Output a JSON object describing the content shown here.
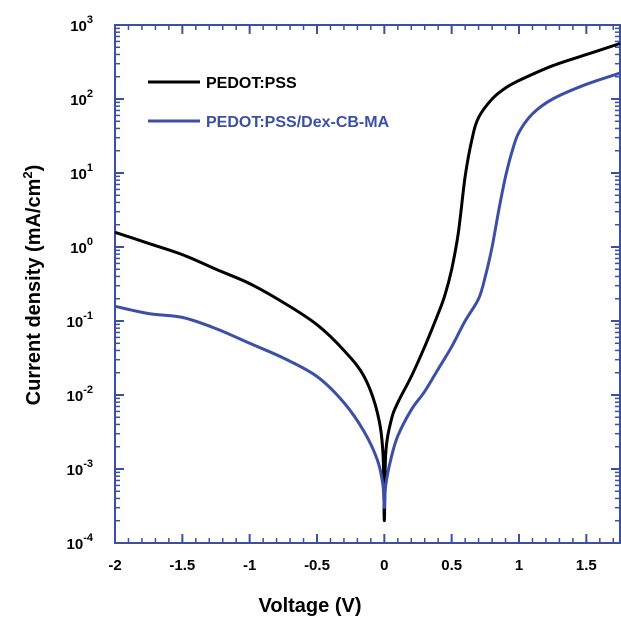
{
  "chart_data": {
    "type": "line",
    "xlabel": "Voltage (V)",
    "ylabel": "Current density (mA/cm",
    "ylabel_sup": "2",
    "ylabel_close": ")",
    "xlim": [
      -2,
      1.75
    ],
    "ylim": [
      0.0001,
      1000
    ],
    "yscale": "log",
    "x_ticks": [
      -2,
      -1.5,
      -1,
      -0.5,
      0,
      0.5,
      1,
      1.5
    ],
    "x_tick_labels": [
      "-2",
      "-1.5",
      "-1",
      "-0.5",
      "0",
      "0.5",
      "1",
      "1.5"
    ],
    "y_ticks": [
      {
        "value": 0.0001,
        "base": "10",
        "exp": "-4"
      },
      {
        "value": 0.001,
        "base": "10",
        "exp": "-3"
      },
      {
        "value": 0.01,
        "base": "10",
        "exp": "-2"
      },
      {
        "value": 0.1,
        "base": "10",
        "exp": "-1"
      },
      {
        "value": 1,
        "base": "10",
        "exp": "0"
      },
      {
        "value": 10,
        "base": "10",
        "exp": "1"
      },
      {
        "value": 100,
        "base": "10",
        "exp": "2"
      },
      {
        "value": 1000,
        "base": "10",
        "exp": "3"
      }
    ],
    "grid": false,
    "legend_position": "top-left",
    "series": [
      {
        "name": "PEDOT:PSS",
        "color": "#000000",
        "x": [
          -2,
          -1.75,
          -1.5,
          -1.25,
          -1,
          -0.75,
          -0.5,
          -0.3,
          -0.15,
          -0.05,
          -0.01,
          0,
          0.01,
          0.05,
          0.1,
          0.2,
          0.3,
          0.4,
          0.45,
          0.5,
          0.55,
          0.6,
          0.65,
          0.7,
          0.8,
          0.9,
          1,
          1.25,
          1.5,
          1.75
        ],
        "y": [
          1.58,
          1.12,
          0.79,
          0.5,
          0.32,
          0.178,
          0.089,
          0.04,
          0.0178,
          0.0056,
          0.0016,
          0.0002,
          0.0016,
          0.0045,
          0.0079,
          0.0178,
          0.045,
          0.126,
          0.224,
          0.5,
          1.58,
          8.9,
          28.2,
          56.2,
          100,
          141,
          178,
          282,
          398,
          562
        ]
      },
      {
        "name": "PEDOT:PSS/Dex-CB-MA",
        "color": "#3b4fa6",
        "x": [
          -2,
          -1.75,
          -1.5,
          -1.25,
          -1,
          -0.75,
          -0.5,
          -0.3,
          -0.15,
          -0.05,
          -0.01,
          0,
          0.01,
          0.05,
          0.1,
          0.2,
          0.3,
          0.4,
          0.5,
          0.6,
          0.7,
          0.75,
          0.8,
          0.85,
          0.9,
          0.95,
          1,
          1.1,
          1.25,
          1.5,
          1.75
        ],
        "y": [
          0.158,
          0.126,
          0.112,
          0.079,
          0.05,
          0.0316,
          0.0178,
          0.0079,
          0.0032,
          0.0013,
          0.0006,
          0.0003,
          0.0006,
          0.0014,
          0.0028,
          0.0063,
          0.0112,
          0.0224,
          0.045,
          0.1,
          0.2,
          0.4,
          1.0,
          3.16,
          8.9,
          20,
          35.5,
          63,
          100,
          158,
          224
        ]
      }
    ]
  }
}
